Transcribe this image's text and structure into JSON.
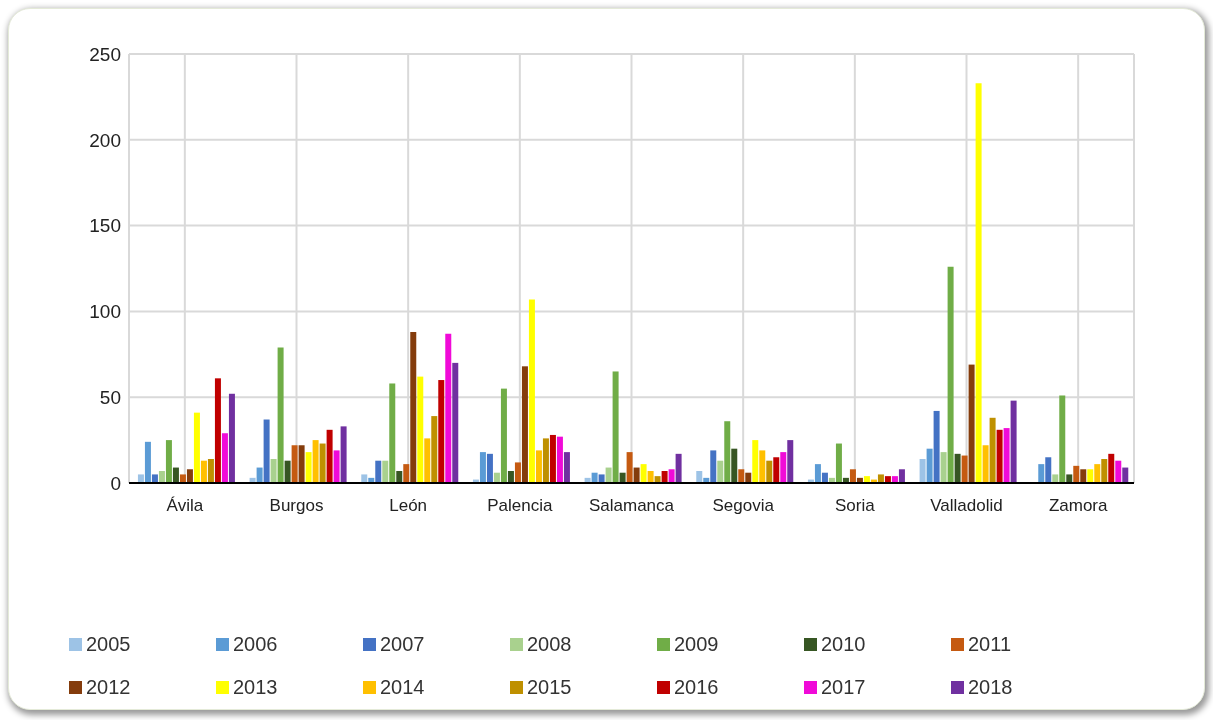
{
  "chart_data": {
    "type": "bar",
    "categories": [
      "Ávila",
      "Burgos",
      "León",
      "Palencia",
      "Salamanca",
      "Segovia",
      "Soria",
      "Valladolid",
      "Zamora"
    ],
    "ylim": [
      0,
      250
    ],
    "yticks": [
      0,
      50,
      100,
      150,
      200,
      250
    ],
    "grid": true,
    "legend": "bottom",
    "series": [
      {
        "name": "2005",
        "color": "#9dc3e6",
        "values": [
          5,
          3,
          5,
          2,
          3,
          7,
          2,
          14,
          0
        ]
      },
      {
        "name": "2006",
        "color": "#5b9bd5",
        "values": [
          24,
          9,
          3,
          18,
          6,
          3,
          11,
          20,
          11
        ]
      },
      {
        "name": "2007",
        "color": "#4472c4",
        "values": [
          5,
          37,
          13,
          17,
          5,
          19,
          6,
          42,
          15
        ]
      },
      {
        "name": "2008",
        "color": "#a9d18e",
        "values": [
          7,
          14,
          13,
          6,
          9,
          13,
          3,
          18,
          5
        ]
      },
      {
        "name": "2009",
        "color": "#70ad47",
        "values": [
          25,
          79,
          58,
          55,
          65,
          36,
          23,
          126,
          51
        ]
      },
      {
        "name": "2010",
        "color": "#375623",
        "values": [
          9,
          13,
          7,
          7,
          6,
          20,
          3,
          17,
          5
        ]
      },
      {
        "name": "2011",
        "color": "#c55a11",
        "values": [
          5,
          22,
          11,
          12,
          18,
          8,
          8,
          16,
          10
        ]
      },
      {
        "name": "2012",
        "color": "#843c0c",
        "values": [
          8,
          22,
          88,
          68,
          9,
          6,
          3,
          69,
          8
        ]
      },
      {
        "name": "2013",
        "color": "#ffff00",
        "values": [
          41,
          18,
          62,
          107,
          11,
          25,
          4,
          233,
          8
        ]
      },
      {
        "name": "2014",
        "color": "#ffc000",
        "values": [
          13,
          25,
          26,
          19,
          7,
          19,
          2,
          22,
          11
        ]
      },
      {
        "name": "2015",
        "color": "#bf9000",
        "values": [
          14,
          23,
          39,
          26,
          4,
          13,
          5,
          38,
          14
        ]
      },
      {
        "name": "2016",
        "color": "#c00000",
        "values": [
          61,
          31,
          60,
          28,
          7,
          15,
          4,
          31,
          17
        ]
      },
      {
        "name": "2017",
        "color": "#f00ad8",
        "values": [
          29,
          19,
          87,
          27,
          8,
          18,
          4,
          32,
          13
        ]
      },
      {
        "name": "2018",
        "color": "#7030a0",
        "values": [
          52,
          33,
          70,
          18,
          17,
          25,
          8,
          48,
          9
        ]
      }
    ]
  }
}
